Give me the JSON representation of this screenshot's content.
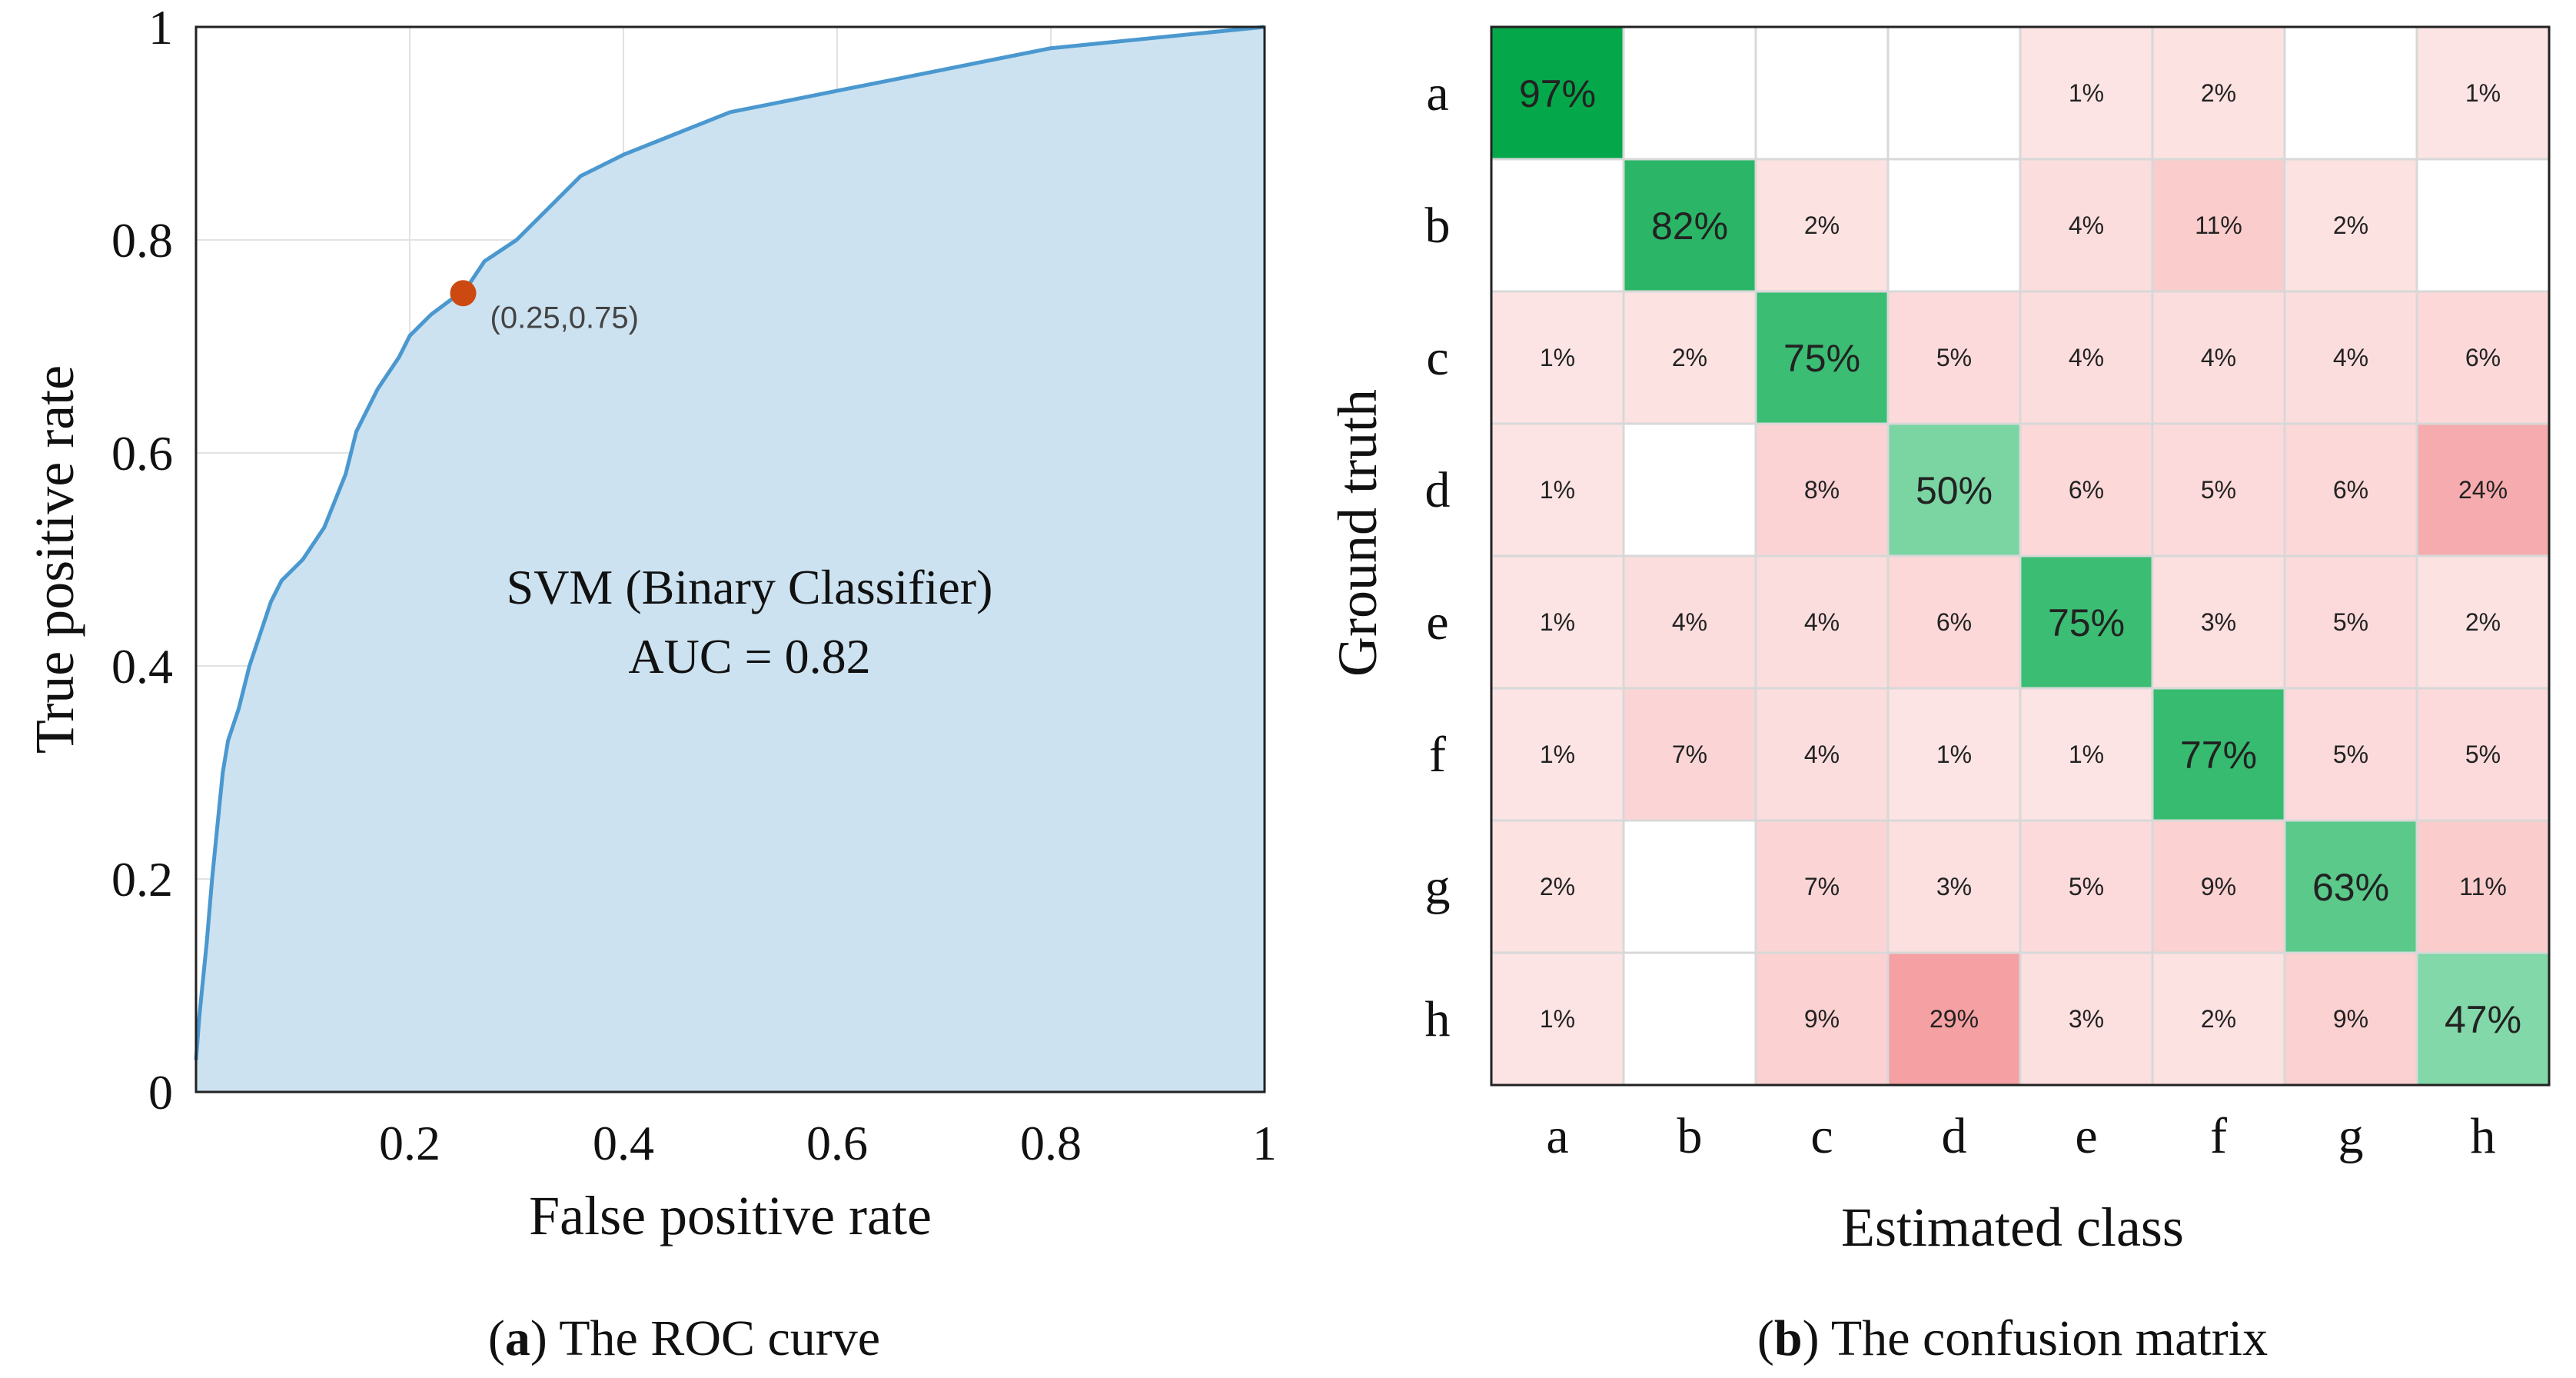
{
  "chart_data": [
    {
      "type": "area",
      "title": "",
      "xlabel": "False positive rate",
      "ylabel": "True positive rate",
      "xlim": [
        0,
        1
      ],
      "ylim": [
        0,
        1
      ],
      "x_ticks": [
        "0.2",
        "0.4",
        "0.6",
        "0.8",
        "1"
      ],
      "y_ticks": [
        "0",
        "0.2",
        "0.4",
        "0.6",
        "0.8",
        "1"
      ],
      "grid": true,
      "series": [
        {
          "name": "ROC",
          "x": [
            0,
            0.003,
            0.006,
            0.01,
            0.015,
            0.02,
            0.025,
            0.03,
            0.04,
            0.05,
            0.06,
            0.07,
            0.08,
            0.09,
            0.1,
            0.12,
            0.14,
            0.15,
            0.17,
            0.19,
            0.2,
            0.22,
            0.24,
            0.25,
            0.27,
            0.3,
            0.33,
            0.36,
            0.4,
            0.45,
            0.5,
            0.55,
            0.6,
            0.65,
            0.7,
            0.75,
            0.8,
            0.85,
            0.9,
            0.95,
            1.0
          ],
          "y": [
            0.03,
            0.07,
            0.1,
            0.14,
            0.2,
            0.25,
            0.3,
            0.33,
            0.36,
            0.4,
            0.43,
            0.46,
            0.48,
            0.49,
            0.5,
            0.53,
            0.58,
            0.62,
            0.66,
            0.69,
            0.71,
            0.73,
            0.745,
            0.75,
            0.78,
            0.8,
            0.83,
            0.86,
            0.88,
            0.9,
            0.92,
            0.93,
            0.94,
            0.95,
            0.96,
            0.97,
            0.98,
            0.985,
            0.99,
            0.995,
            1.0
          ]
        }
      ],
      "highlight_point": {
        "x": 0.25,
        "y": 0.75,
        "label": "(0.25,0.75)"
      },
      "annotation": [
        "SVM (Binary Classifier)",
        "AUC = 0.82"
      ],
      "caption_letter": "a",
      "caption_text": ") The ROC curve",
      "colors": {
        "fill": "#cce2f0",
        "line": "#4a98cf",
        "point": "#cc4a12",
        "grid": "#e2e2e2"
      }
    },
    {
      "type": "heatmap",
      "title": "",
      "xlabel": "Estimated class",
      "ylabel": "Ground truth",
      "rows": [
        "a",
        "b",
        "c",
        "d",
        "e",
        "f",
        "g",
        "h"
      ],
      "cols": [
        "a",
        "b",
        "c",
        "d",
        "e",
        "f",
        "g",
        "h"
      ],
      "values": [
        [
          97,
          null,
          null,
          null,
          1,
          2,
          null,
          1
        ],
        [
          null,
          82,
          2,
          null,
          4,
          11,
          2,
          null
        ],
        [
          1,
          2,
          75,
          5,
          4,
          4,
          4,
          6
        ],
        [
          1,
          null,
          8,
          50,
          6,
          5,
          6,
          24
        ],
        [
          1,
          4,
          4,
          6,
          75,
          3,
          5,
          2
        ],
        [
          1,
          7,
          4,
          1,
          1,
          77,
          5,
          5
        ],
        [
          2,
          null,
          7,
          3,
          5,
          9,
          63,
          11
        ],
        [
          1,
          null,
          9,
          29,
          3,
          2,
          9,
          47
        ]
      ],
      "caption_letter": "b",
      "caption_text": ") The confusion matrix",
      "colors": {
        "diag_strong": "#04a84a",
        "diag_weak": "#82d8a8",
        "off_light": "#fde4e4",
        "off_strong": "#f5a0a2"
      }
    }
  ]
}
